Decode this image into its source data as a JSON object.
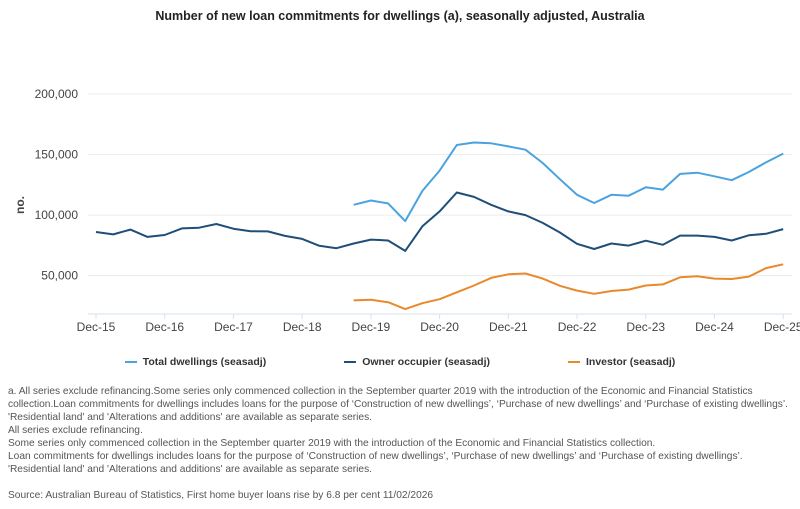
{
  "chart_data": {
    "type": "line",
    "title": "Number of new loan commitments for dwellings (a), seasonally adjusted, Australia",
    "ylabel": "no.",
    "xlabel": "",
    "ylim": [
      17500,
      205000
    ],
    "yticks": [
      50000,
      100000,
      150000,
      200000
    ],
    "ytick_labels": [
      "50,000",
      "100,000",
      "150,000",
      "200,000"
    ],
    "xtick_labels": [
      "Dec-15",
      "Dec-16",
      "Dec-17",
      "Dec-18",
      "Dec-19",
      "Dec-20",
      "Dec-21",
      "Dec-22",
      "Dec-23",
      "Dec-24",
      "Dec-25"
    ],
    "x": [
      "Dec-15",
      "Mar-16",
      "Jun-16",
      "Sep-16",
      "Dec-16",
      "Mar-17",
      "Jun-17",
      "Sep-17",
      "Dec-17",
      "Mar-18",
      "Jun-18",
      "Sep-18",
      "Dec-18",
      "Mar-19",
      "Jun-19",
      "Sep-19",
      "Dec-19",
      "Mar-20",
      "Jun-20",
      "Sep-20",
      "Dec-20",
      "Mar-21",
      "Jun-21",
      "Sep-21",
      "Dec-21",
      "Mar-22",
      "Jun-22",
      "Sep-22",
      "Dec-22",
      "Mar-23",
      "Jun-23",
      "Sep-23",
      "Dec-23",
      "Mar-24",
      "Jun-24",
      "Sep-24",
      "Dec-24",
      "Mar-25",
      "Jun-25",
      "Sep-25",
      "Dec-25"
    ],
    "grid": true,
    "legend": "bottom",
    "series": [
      {
        "name": "Total dwellings (seasadj)",
        "color": "#4aa3df",
        "values": [
          null,
          null,
          null,
          null,
          null,
          null,
          null,
          null,
          null,
          null,
          null,
          null,
          null,
          null,
          null,
          108500,
          112000,
          109600,
          95000,
          120000,
          136700,
          157900,
          159900,
          159300,
          156700,
          154000,
          143000,
          129600,
          116700,
          110000,
          116700,
          116000,
          122900,
          121000,
          134000,
          135000,
          132000,
          128800,
          135600,
          143500,
          150800
        ]
      },
      {
        "name": "Owner occupier (seasadj)",
        "color": "#1f4e79",
        "values": [
          86000,
          84000,
          88000,
          82000,
          83500,
          89000,
          89600,
          92600,
          88700,
          86700,
          86500,
          82800,
          80300,
          74600,
          72600,
          76500,
          79700,
          79000,
          70400,
          90700,
          103000,
          118600,
          115000,
          108500,
          103000,
          100000,
          93500,
          85600,
          76300,
          72000,
          76500,
          74800,
          78800,
          75400,
          83000,
          83000,
          82000,
          79000,
          83300,
          84500,
          88400
        ]
      },
      {
        "name": "Investor (seasadj)",
        "color": "#e8892b",
        "values": [
          null,
          null,
          null,
          null,
          null,
          null,
          null,
          null,
          null,
          null,
          null,
          null,
          null,
          null,
          null,
          29500,
          30000,
          28000,
          22300,
          27200,
          30500,
          36200,
          41800,
          48100,
          51100,
          51700,
          47500,
          41600,
          37600,
          35000,
          37300,
          38400,
          41800,
          42700,
          48600,
          49400,
          47500,
          47200,
          49200,
          56200,
          59300
        ]
      }
    ]
  },
  "notes": [
    "a. All series exclude refinancing.Some series only commenced collection in the September quarter 2019 with the introduction of the Economic and Financial Statistics",
    "collection.Loan commitments for dwellings includes loans for the purpose of ‘Construction of new dwellings’, ‘Purchase of new dwellings’ and ‘Purchase of existing dwellings’.",
    "'Residential land' and 'Alterations and additions' are available as separate series.",
    "All series exclude refinancing.",
    "Some series only commenced collection in the September quarter 2019 with the introduction of the Economic and Financial Statistics collection.",
    "Loan commitments for dwellings includes loans for the purpose of ‘Construction of new dwellings’, ‘Purchase of new dwellings’ and ‘Purchase of existing dwellings’.",
    "'Residential land' and 'Alterations and additions' are available as separate series."
  ],
  "source": "Source: Australian Bureau of Statistics, First home buyer loans rise by 6.8 per cent 11/02/2026"
}
